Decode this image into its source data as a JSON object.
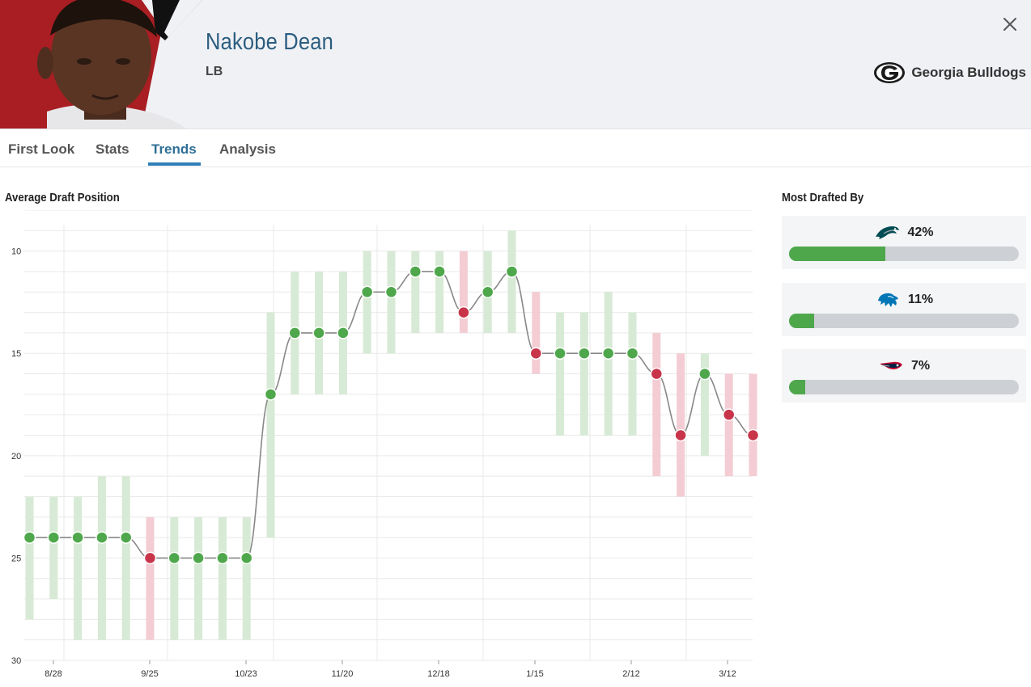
{
  "player": {
    "name": "Nakobe Dean",
    "position": "LB"
  },
  "team": {
    "name": "Georgia Bulldogs",
    "icon": "georgia-g-logo"
  },
  "tabs": [
    {
      "label": "First Look",
      "active": false
    },
    {
      "label": "Stats",
      "active": false
    },
    {
      "label": "Trends",
      "active": true
    },
    {
      "label": "Analysis",
      "active": false
    }
  ],
  "adp": {
    "title": "Average Draft Position",
    "chart_data": {
      "type": "line",
      "y_ticks": [
        10,
        15,
        20,
        25,
        30
      ],
      "ylim": [
        8,
        30
      ],
      "y_reversed": true,
      "x_ticks": [
        "8/28",
        "9/25",
        "10/23",
        "11/20",
        "12/18",
        "1/15",
        "2/12",
        "3/12"
      ],
      "grid": true,
      "colors": {
        "rise": "#4fa74c",
        "drop": "#c8344a",
        "rise_range": "#d7ead5",
        "drop_range": "#f3cdd3",
        "line": "#888888"
      },
      "points": [
        {
          "adp": 24,
          "low": 22,
          "high": 28,
          "trend": "up"
        },
        {
          "adp": 24,
          "low": 22,
          "high": 27,
          "trend": "up"
        },
        {
          "adp": 24,
          "low": 22,
          "high": 29,
          "trend": "up"
        },
        {
          "adp": 24,
          "low": 21,
          "high": 29,
          "trend": "up"
        },
        {
          "adp": 24,
          "low": 21,
          "high": 29,
          "trend": "up"
        },
        {
          "adp": 25,
          "low": 23,
          "high": 29,
          "trend": "down"
        },
        {
          "adp": 25,
          "low": 23,
          "high": 29,
          "trend": "up"
        },
        {
          "adp": 25,
          "low": 23,
          "high": 29,
          "trend": "up"
        },
        {
          "adp": 25,
          "low": 23,
          "high": 29,
          "trend": "up"
        },
        {
          "adp": 25,
          "low": 23,
          "high": 29,
          "trend": "up"
        },
        {
          "adp": 17,
          "low": 13,
          "high": 24,
          "trend": "up"
        },
        {
          "adp": 14,
          "low": 11,
          "high": 17,
          "trend": "up"
        },
        {
          "adp": 14,
          "low": 11,
          "high": 17,
          "trend": "up"
        },
        {
          "adp": 14,
          "low": 11,
          "high": 17,
          "trend": "up"
        },
        {
          "adp": 12,
          "low": 10,
          "high": 15,
          "trend": "up"
        },
        {
          "adp": 12,
          "low": 10,
          "high": 15,
          "trend": "up"
        },
        {
          "adp": 11,
          "low": 10,
          "high": 14,
          "trend": "up"
        },
        {
          "adp": 11,
          "low": 10,
          "high": 14,
          "trend": "up"
        },
        {
          "adp": 13,
          "low": 10,
          "high": 14,
          "trend": "down"
        },
        {
          "adp": 12,
          "low": 10,
          "high": 14,
          "trend": "up"
        },
        {
          "adp": 11,
          "low": 9,
          "high": 14,
          "trend": "up"
        },
        {
          "adp": 15,
          "low": 12,
          "high": 16,
          "trend": "down"
        },
        {
          "adp": 15,
          "low": 13,
          "high": 19,
          "trend": "up"
        },
        {
          "adp": 15,
          "low": 13,
          "high": 19,
          "trend": "up"
        },
        {
          "adp": 15,
          "low": 12,
          "high": 19,
          "trend": "up"
        },
        {
          "adp": 15,
          "low": 13,
          "high": 19,
          "trend": "up"
        },
        {
          "adp": 16,
          "low": 14,
          "high": 21,
          "trend": "down"
        },
        {
          "adp": 19,
          "low": 15,
          "high": 22,
          "trend": "down"
        },
        {
          "adp": 16,
          "low": 15,
          "high": 20,
          "trend": "up"
        },
        {
          "adp": 18,
          "low": 16,
          "high": 21,
          "trend": "down"
        },
        {
          "adp": 19,
          "low": 16,
          "high": 21,
          "trend": "down"
        }
      ]
    }
  },
  "most_drafted": {
    "title": "Most Drafted By",
    "teams": [
      {
        "icon": "eagles-logo",
        "pct_label": "42%",
        "pct": 42
      },
      {
        "icon": "lions-logo",
        "pct_label": "11%",
        "pct": 11
      },
      {
        "icon": "patriots-logo",
        "pct_label": "7%",
        "pct": 7
      }
    ]
  }
}
